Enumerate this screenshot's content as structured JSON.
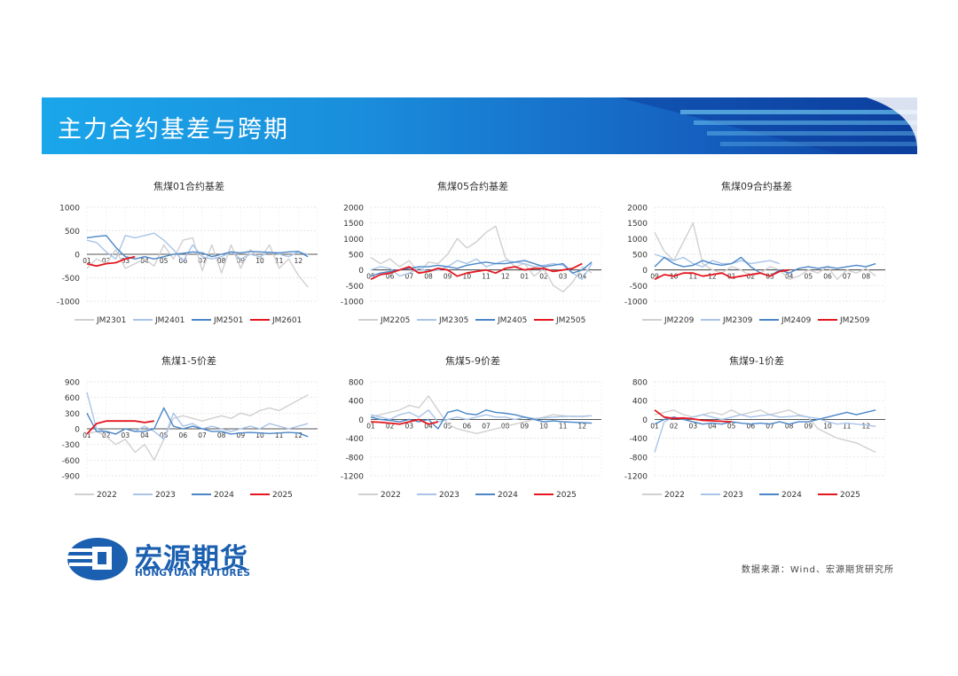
{
  "page": {
    "title": "主力合约基差与跨期",
    "source": "数据来源：Wind、宏源期货研究所",
    "logo": {
      "name_cn": "宏源期货",
      "name_en": "HONGYUAN FUTURES"
    },
    "colors": {
      "banner_dark": "#0d3f9e",
      "banner_light": "#1aa6ea",
      "brand": "#1b5fb0"
    }
  },
  "chart_data": [
    {
      "type": "line",
      "title": "焦煤01合约基差",
      "ylim": [
        -1000,
        1000
      ],
      "yticks": [
        -1000,
        -500,
        0,
        500,
        1000
      ],
      "categories": [
        "01",
        "02",
        "03",
        "04",
        "05",
        "06",
        "07",
        "08",
        "09",
        "10",
        "11",
        "12"
      ],
      "x": [
        1,
        1.5,
        2,
        2.5,
        3,
        3.5,
        4,
        4.5,
        5,
        5.5,
        6,
        6.5,
        7,
        7.5,
        8,
        8.5,
        9,
        9.5,
        10,
        10.5,
        11,
        11.5,
        12,
        12.5
      ],
      "series": [
        {
          "name": "JM2301",
          "color": "#d0d0d0",
          "values": [
            -300,
            -100,
            -200,
            100,
            -300,
            -200,
            -100,
            -250,
            200,
            -100,
            300,
            350,
            -350,
            200,
            -400,
            200,
            -300,
            100,
            -100,
            200,
            -300,
            -100,
            -450,
            -700
          ]
        },
        {
          "name": "JM2401",
          "color": "#a9c4e8",
          "values": [
            300,
            250,
            50,
            -100,
            400,
            350,
            400,
            450,
            300,
            100,
            -150,
            200,
            -50,
            -100,
            -50,
            50,
            -100,
            0,
            -50,
            50,
            0,
            -50,
            50,
            0
          ]
        },
        {
          "name": "JM2501",
          "color": "#4a86c8",
          "values": [
            350,
            380,
            400,
            150,
            -50,
            -100,
            -50,
            -100,
            -50,
            0,
            20,
            50,
            30,
            -50,
            0,
            50,
            30,
            60,
            50,
            40,
            30,
            50,
            60,
            -50
          ]
        },
        {
          "name": "JM2601",
          "color": "#e5161f",
          "values": [
            -200,
            -250,
            -200,
            -180,
            -100,
            -50,
            null,
            null,
            null,
            null,
            null,
            null,
            null,
            null,
            null,
            null,
            null,
            null,
            null,
            null,
            null,
            null,
            null,
            null
          ]
        }
      ]
    },
    {
      "type": "line",
      "title": "焦煤05合约基差",
      "ylim": [
        -1000,
        2000
      ],
      "yticks": [
        -1000,
        -500,
        0,
        500,
        1000,
        1500,
        2000
      ],
      "categories": [
        "05",
        "06",
        "07",
        "08",
        "09",
        "10",
        "11",
        "12",
        "01",
        "02",
        "03",
        "04"
      ],
      "x": [
        1,
        1.5,
        2,
        2.5,
        3,
        3.5,
        4,
        4.5,
        5,
        5.5,
        6,
        6.5,
        7,
        7.5,
        8,
        8.5,
        9,
        9.5,
        10,
        10.5,
        11,
        11.5,
        12,
        12.5
      ],
      "series": [
        {
          "name": "JM2205",
          "color": "#d0d0d0",
          "values": [
            400,
            200,
            350,
            100,
            300,
            -100,
            250,
            200,
            500,
            1000,
            700,
            900,
            1200,
            1400,
            400,
            100,
            200,
            -200,
            50,
            -500,
            -700,
            -400,
            100,
            -100
          ]
        },
        {
          "name": "JM2305",
          "color": "#a9c4e8",
          "values": [
            0,
            100,
            50,
            -200,
            -100,
            50,
            -50,
            0,
            100,
            300,
            200,
            350,
            100,
            200,
            300,
            250,
            200,
            100,
            150,
            200,
            150,
            -100,
            -300,
            200
          ]
        },
        {
          "name": "JM2405",
          "color": "#4a86c8",
          "values": [
            -200,
            -100,
            -50,
            0,
            50,
            100,
            100,
            150,
            100,
            50,
            150,
            200,
            250,
            200,
            200,
            250,
            300,
            200,
            100,
            150,
            200,
            -100,
            0,
            250
          ]
        },
        {
          "name": "JM2505",
          "color": "#e5161f",
          "values": [
            -300,
            -150,
            -100,
            0,
            100,
            -100,
            -50,
            50,
            0,
            -200,
            -100,
            -50,
            0,
            -100,
            50,
            100,
            0,
            50,
            50,
            -50,
            0,
            50,
            200,
            null
          ]
        }
      ]
    },
    {
      "type": "line",
      "title": "焦煤09合约基差",
      "ylim": [
        -1000,
        2000
      ],
      "yticks": [
        -1000,
        -500,
        0,
        500,
        1000,
        1500,
        2000
      ],
      "categories": [
        "09",
        "10",
        "11",
        "12",
        "01",
        "02",
        "03",
        "04",
        "05",
        "06",
        "07",
        "08"
      ],
      "x": [
        1,
        1.5,
        2,
        2.5,
        3,
        3.5,
        4,
        4.5,
        5,
        5.5,
        6,
        6.5,
        7,
        7.5,
        8,
        8.5,
        9,
        9.5,
        10,
        10.5,
        11,
        11.5,
        12,
        12.5
      ],
      "series": [
        {
          "name": "JM2209",
          "color": "#d0d0d0",
          "values": [
            1200,
            600,
            300,
            900,
            1500,
            200,
            0,
            -100,
            100,
            0,
            -200,
            -100,
            100,
            0,
            -300,
            -200,
            0,
            -100,
            100,
            -300,
            0,
            -100,
            50,
            -200
          ]
        },
        {
          "name": "JM2309",
          "color": "#a9c4e8",
          "values": [
            500,
            400,
            300,
            400,
            200,
            100,
            300,
            200,
            200,
            300,
            200,
            250,
            300,
            200,
            null,
            null,
            null,
            null,
            null,
            null,
            null,
            null,
            null,
            null
          ]
        },
        {
          "name": "JM2409",
          "color": "#4a86c8",
          "values": [
            100,
            400,
            200,
            100,
            150,
            300,
            200,
            150,
            200,
            400,
            100,
            -100,
            -200,
            0,
            -100,
            50,
            100,
            50,
            100,
            50,
            100,
            150,
            100,
            200
          ]
        },
        {
          "name": "JM2509",
          "color": "#e5161f",
          "values": [
            -300,
            -150,
            -200,
            -100,
            -100,
            -200,
            -150,
            -100,
            -250,
            -200,
            -150,
            -100,
            -200,
            -50,
            0,
            null,
            null,
            null,
            null,
            null,
            null,
            null,
            null,
            null
          ]
        }
      ]
    },
    {
      "type": "line",
      "title": "焦煤1-5价差",
      "ylim": [
        -900,
        900
      ],
      "yticks": [
        -900,
        -600,
        -300,
        0,
        300,
        600,
        900
      ],
      "categories": [
        "01",
        "02",
        "03",
        "04",
        "05",
        "06",
        "07",
        "08",
        "09",
        "10",
        "11",
        "12"
      ],
      "x": [
        1,
        1.5,
        2,
        2.5,
        3,
        3.5,
        4,
        4.5,
        5,
        5.5,
        6,
        6.5,
        7,
        7.5,
        8,
        8.5,
        9,
        9.5,
        10,
        10.5,
        11,
        11.5,
        12,
        12.5
      ],
      "series": [
        {
          "name": "2022",
          "color": "#d0d0d0",
          "values": [
            -100,
            -50,
            -150,
            -300,
            -200,
            -450,
            -300,
            -600,
            -200,
            200,
            250,
            200,
            150,
            200,
            250,
            200,
            300,
            250,
            350,
            400,
            350,
            450,
            550,
            650
          ]
        },
        {
          "name": "2023",
          "color": "#a9c4e8",
          "values": [
            700,
            0,
            -50,
            -100,
            0,
            -50,
            50,
            -50,
            -200,
            300,
            50,
            100,
            0,
            50,
            0,
            -50,
            0,
            50,
            0,
            100,
            50,
            0,
            50,
            100
          ]
        },
        {
          "name": "2024",
          "color": "#4a86c8",
          "values": [
            300,
            -50,
            -50,
            -100,
            0,
            -50,
            -50,
            0,
            400,
            50,
            0,
            50,
            0,
            -50,
            -50,
            -100,
            -80,
            -70,
            -80,
            -90,
            -80,
            -70,
            -80,
            -150
          ]
        },
        {
          "name": "2025",
          "color": "#e5161f",
          "values": [
            -100,
            100,
            150,
            150,
            150,
            150,
            120,
            150,
            null,
            null,
            null,
            null,
            null,
            null,
            null,
            null,
            null,
            null,
            null,
            null,
            null,
            null,
            null,
            null
          ]
        }
      ]
    },
    {
      "type": "line",
      "title": "焦煤5-9价差",
      "ylim": [
        -1200,
        800
      ],
      "yticks": [
        -1200,
        -800,
        -400,
        0,
        400,
        800
      ],
      "categories": [
        "01",
        "02",
        "03",
        "04",
        "05",
        "06",
        "07",
        "08",
        "09",
        "10",
        "11",
        "12"
      ],
      "x": [
        1,
        1.5,
        2,
        2.5,
        3,
        3.5,
        4,
        4.5,
        5,
        5.5,
        6,
        6.5,
        7,
        7.5,
        8,
        8.5,
        9,
        9.5,
        10,
        10.5,
        11,
        11.5,
        12,
        12.5
      ],
      "series": [
        {
          "name": "2022",
          "color": "#d0d0d0",
          "values": [
            50,
            100,
            150,
            200,
            300,
            250,
            500,
            200,
            -100,
            -200,
            -250,
            -300,
            -250,
            -200,
            -150,
            -100,
            -50,
            0,
            50,
            100,
            80,
            60,
            70,
            80
          ]
        },
        {
          "name": "2023",
          "color": "#a9c4e8",
          "values": [
            100,
            50,
            0,
            100,
            150,
            50,
            200,
            -50,
            0,
            50,
            0,
            50,
            100,
            50,
            50,
            0,
            50,
            20,
            30,
            50,
            60,
            70,
            60,
            80
          ]
        },
        {
          "name": "2024",
          "color": "#4a86c8",
          "values": [
            50,
            0,
            -20,
            -50,
            0,
            -50,
            0,
            -200,
            150,
            200,
            120,
            100,
            200,
            150,
            130,
            100,
            50,
            0,
            -50,
            -30,
            -50,
            -60,
            -70,
            -80
          ]
        },
        {
          "name": "2025",
          "color": "#e5161f",
          "values": [
            -50,
            -60,
            -80,
            -100,
            -50,
            0,
            -100,
            -50,
            null,
            null,
            null,
            null,
            null,
            null,
            null,
            null,
            null,
            null,
            null,
            null,
            null,
            null,
            null,
            null
          ]
        }
      ]
    },
    {
      "type": "line",
      "title": "焦煤9-1价差",
      "ylim": [
        -1200,
        800
      ],
      "yticks": [
        -1200,
        -800,
        -400,
        0,
        400,
        800
      ],
      "categories": [
        "01",
        "02",
        "03",
        "04",
        "05",
        "06",
        "07",
        "08",
        "09",
        "10",
        "11",
        "12"
      ],
      "x": [
        1,
        1.5,
        2,
        2.5,
        3,
        3.5,
        4,
        4.5,
        5,
        5.5,
        6,
        6.5,
        7,
        7.5,
        8,
        8.5,
        9,
        9.5,
        10,
        10.5,
        11,
        11.5,
        12,
        12.5
      ],
      "series": [
        {
          "name": "2022",
          "color": "#d0d0d0",
          "values": [
            100,
            150,
            200,
            100,
            50,
            100,
            150,
            100,
            200,
            100,
            150,
            200,
            100,
            150,
            200,
            100,
            50,
            -200,
            -300,
            -400,
            -450,
            -500,
            -600,
            -700
          ]
        },
        {
          "name": "2023",
          "color": "#a9c4e8",
          "values": [
            -700,
            -50,
            50,
            0,
            50,
            100,
            50,
            0,
            50,
            100,
            50,
            80,
            100,
            50,
            60,
            80,
            50,
            20,
            -50,
            -100,
            -80,
            -100,
            -120,
            -150
          ]
        },
        {
          "name": "2024",
          "color": "#4a86c8",
          "values": [
            -100,
            0,
            50,
            0,
            -50,
            -100,
            -80,
            -100,
            -50,
            -80,
            -100,
            -80,
            -100,
            -50,
            -100,
            -50,
            -50,
            0,
            50,
            100,
            150,
            100,
            150,
            200
          ]
        },
        {
          "name": "2025",
          "color": "#e5161f",
          "values": [
            200,
            50,
            20,
            30,
            10,
            -20,
            -30,
            -40,
            -50,
            null,
            null,
            null,
            null,
            null,
            null,
            null,
            null,
            null,
            null,
            null,
            null,
            null,
            null,
            null
          ]
        }
      ]
    }
  ]
}
